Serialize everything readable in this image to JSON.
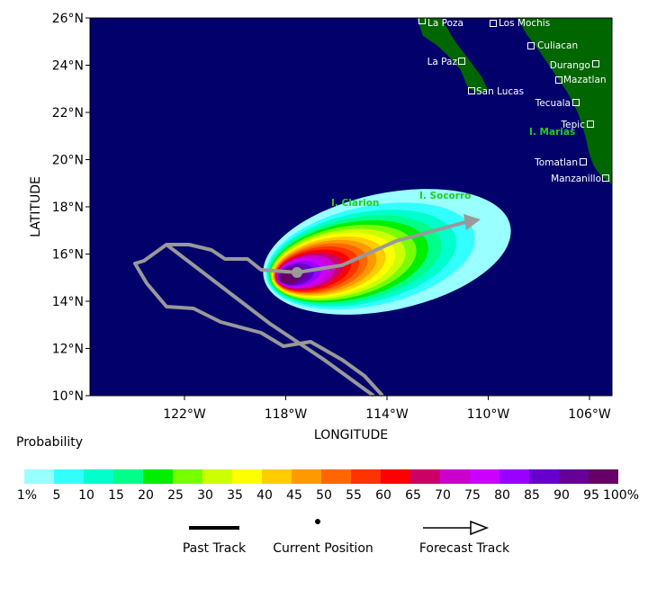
{
  "map": {
    "lat_ticks": [
      {
        "value": 26,
        "label": "26°N"
      },
      {
        "value": 24,
        "label": "24°N"
      },
      {
        "value": 22,
        "label": "22°N"
      },
      {
        "value": 20,
        "label": "20°N"
      },
      {
        "value": 18,
        "label": "18°N"
      },
      {
        "value": 16,
        "label": "16°N"
      },
      {
        "value": 14,
        "label": "14°N"
      },
      {
        "value": 12,
        "label": "12°N"
      },
      {
        "value": 10,
        "label": "10°N"
      }
    ],
    "lon_ticks": [
      {
        "value": -122,
        "label": "122°W"
      },
      {
        "value": -118,
        "label": "118°W"
      },
      {
        "value": -114,
        "label": "114°W"
      },
      {
        "value": -110,
        "label": "110°W"
      },
      {
        "value": -106,
        "label": "106°W"
      }
    ],
    "x_label": "LONGITUDE",
    "y_label": "LATITUDE",
    "places": [
      "La Poza",
      "Los Mochis",
      "Culiacan",
      "Durango",
      "Mazatlan",
      "La Paz",
      "San Lucas",
      "Tecuala",
      "Tepic",
      "Tomatlan",
      "Manzanillo"
    ],
    "islands": [
      "I. Clarion",
      "I. Socorro",
      "I. Marias"
    ],
    "colorbar": {
      "title": "Probability",
      "labels": [
        "1%",
        "5",
        "10",
        "15",
        "20",
        "25",
        "30",
        "35",
        "40",
        "45",
        "50",
        "55",
        "60",
        "65",
        "70",
        "75",
        "80",
        "85",
        "90",
        "95",
        "100%"
      ],
      "colors": [
        "#99ffff",
        "#33ffff",
        "#00ffcc",
        "#00ff88",
        "#00ee00",
        "#77ff00",
        "#ccff00",
        "#ffff00",
        "#ffcc00",
        "#ff9900",
        "#ff6600",
        "#ff3300",
        "#ff0000",
        "#cc0066",
        "#cc00cc",
        "#cc00ff",
        "#9900ff",
        "#6600cc",
        "#660099",
        "#660066"
      ]
    },
    "legend": [
      "Past Track",
      "Current Position",
      "Forecast Track"
    ]
  }
}
